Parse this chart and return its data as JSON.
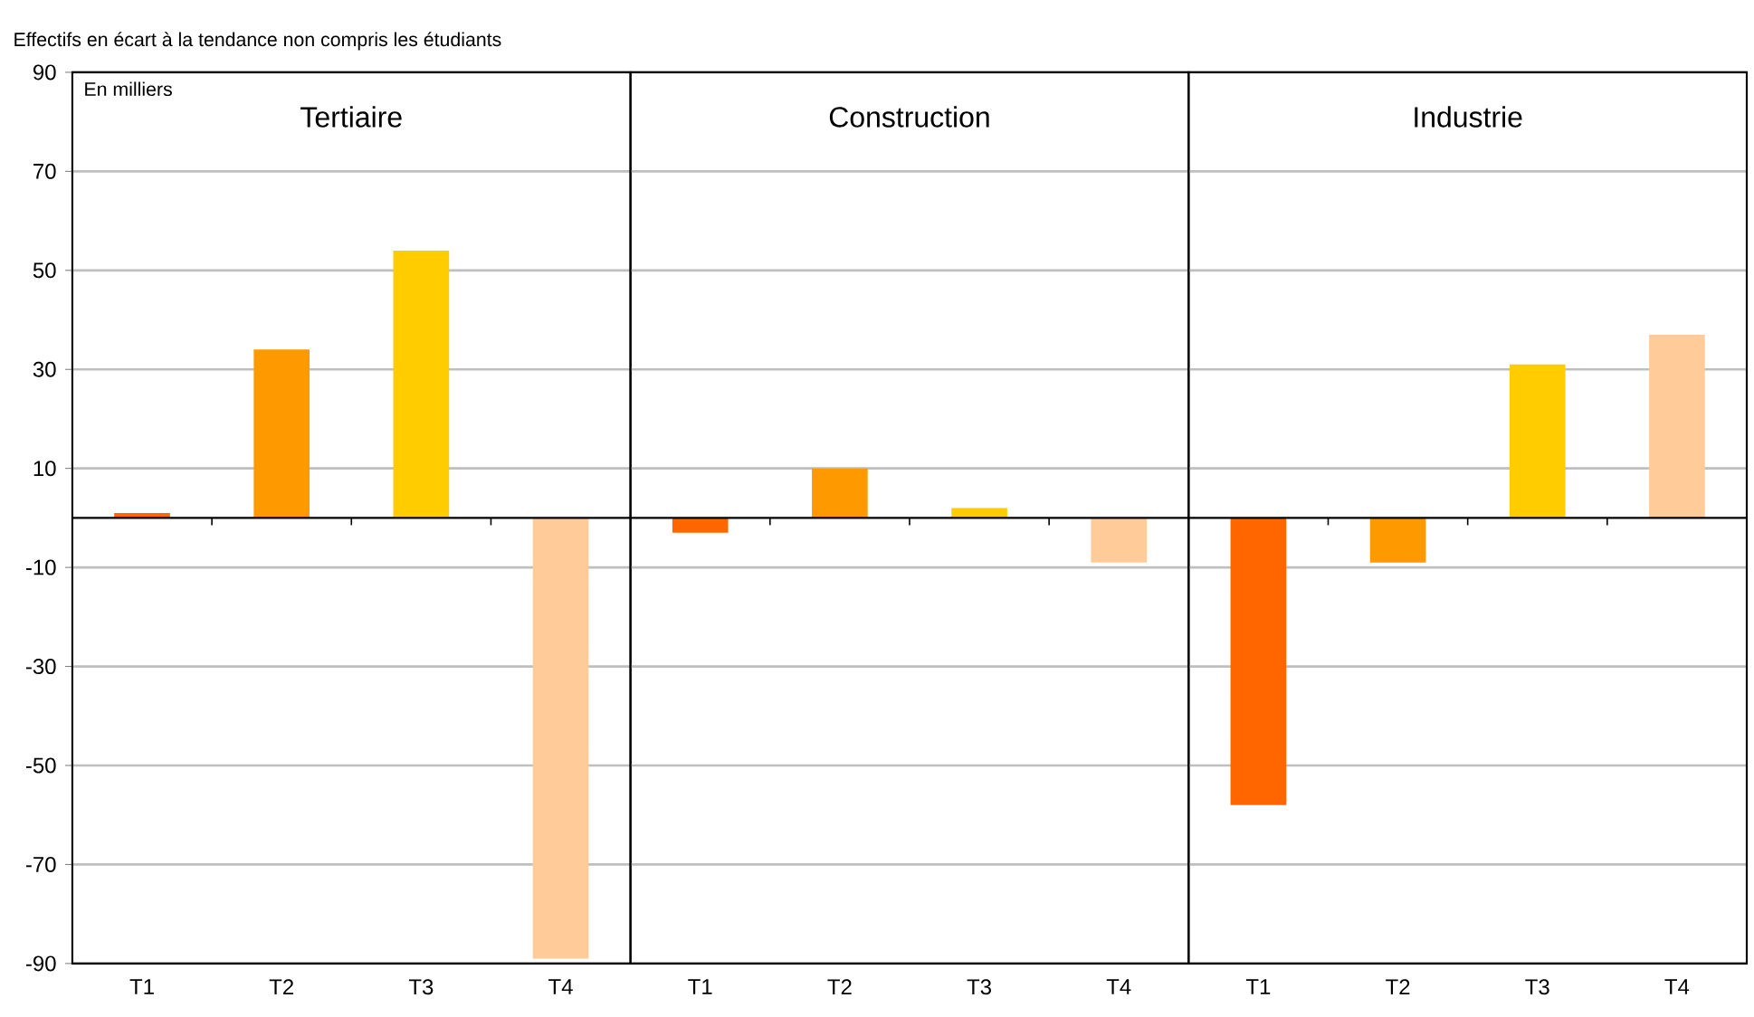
{
  "chart_data": [
    {
      "type": "bar",
      "title": "Tertiaire",
      "annotations": [
        "Effectifs en écart à la tendance non compris les étudiants",
        "En milliers"
      ],
      "categories": [
        "T1",
        "T2",
        "T3",
        "T4"
      ],
      "values": [
        1,
        34,
        54,
        -89
      ],
      "colors": [
        "#ff6600",
        "#ff9900",
        "#ffcc00",
        "#ffcc99"
      ],
      "ylim": [
        -90,
        90
      ],
      "yticks": [
        -90,
        -70,
        -50,
        -30,
        -10,
        10,
        30,
        50,
        70,
        90
      ],
      "grid": "y"
    },
    {
      "type": "bar",
      "title": "Construction",
      "categories": [
        "T1",
        "T2",
        "T3",
        "T4"
      ],
      "values": [
        -3,
        10,
        2,
        -9
      ],
      "colors": [
        "#ff6600",
        "#ff9900",
        "#ffcc00",
        "#ffcc99"
      ],
      "ylim": [
        -90,
        90
      ],
      "yticks": [
        -90,
        -70,
        -50,
        -30,
        -10,
        10,
        30,
        50,
        70,
        90
      ],
      "grid": "y",
      "tick_labels": "x"
    },
    {
      "type": "bar",
      "title": "Industrie",
      "categories": [
        "T1",
        "T2",
        "T3",
        "T4"
      ],
      "values": [
        -58,
        -9,
        31,
        37
      ],
      "colors": [
        "#ff6600",
        "#ff9900",
        "#ffcc00",
        "#ffcc99"
      ],
      "ylim": [
        -90,
        90
      ],
      "yticks": [
        -90,
        -70,
        -50,
        -30,
        -10,
        10,
        30,
        50,
        70,
        90
      ],
      "grid": "y",
      "tick_labels": "x"
    }
  ]
}
